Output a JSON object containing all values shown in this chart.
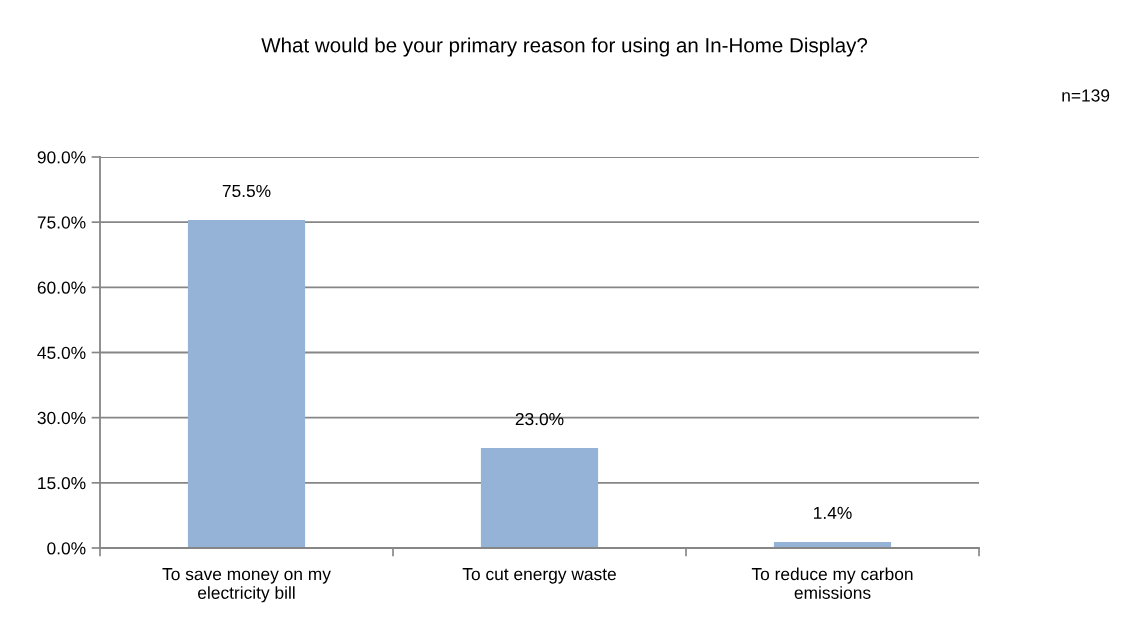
{
  "chart_data": {
    "type": "bar",
    "title": "What would be your primary reason for using an In-Home Display?",
    "annotations": [
      "n=139"
    ],
    "categories": [
      "To save money on my\nelectricity bill",
      "To cut energy waste",
      "To reduce my carbon\nemissions"
    ],
    "values": [
      75.5,
      23.0,
      1.4
    ],
    "value_labels": [
      "75.5%",
      "23.0%",
      "1.4%"
    ],
    "color": "#95b3d7",
    "ylim": [
      0,
      90
    ],
    "yticks": [
      {
        "value": 0,
        "label": "0.0%"
      },
      {
        "value": 15,
        "label": "15.0%"
      },
      {
        "value": 30,
        "label": "30.0%"
      },
      {
        "value": 45,
        "label": "45.0%"
      },
      {
        "value": 60,
        "label": "60.0%"
      },
      {
        "value": 75,
        "label": "75.0%"
      },
      {
        "value": 90,
        "label": "90.0%"
      }
    ],
    "grid": "y",
    "legend": false
  }
}
